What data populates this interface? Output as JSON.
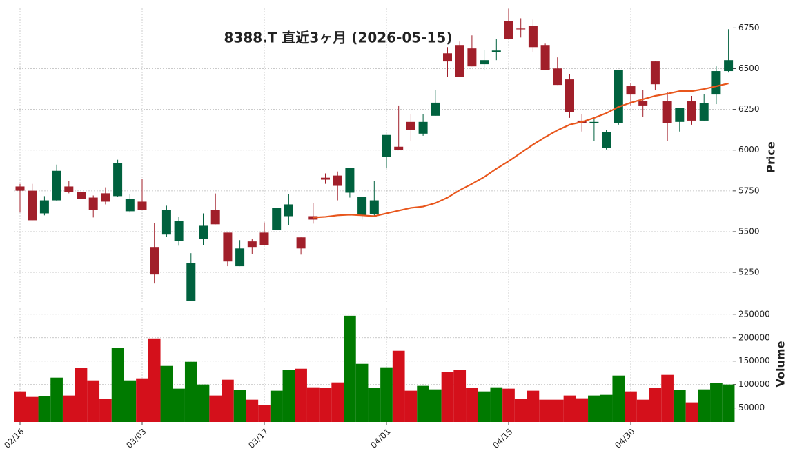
{
  "chart_data": [
    {
      "type": "candlestick",
      "title": "8388.T  直近3ヶ月 (2026-05-15)",
      "ylabel": "Price",
      "categories": [
        "02/16",
        null,
        null,
        null,
        null,
        null,
        null,
        null,
        null,
        null,
        "03/03",
        null,
        null,
        null,
        null,
        null,
        null,
        null,
        null,
        null,
        "03/17",
        null,
        null,
        null,
        null,
        null,
        null,
        null,
        null,
        null,
        "04/01",
        null,
        null,
        null,
        null,
        null,
        null,
        null,
        null,
        null,
        "04/15",
        null,
        null,
        null,
        null,
        null,
        null,
        null,
        null,
        null,
        "04/30",
        null,
        null,
        null,
        null,
        null,
        null,
        null,
        null
      ],
      "open": [
        5777,
        5751,
        5612,
        5692,
        5777,
        5743,
        5709,
        5735,
        5718,
        5625,
        5684,
        5406,
        5482,
        5444,
        5077,
        5456,
        5633,
        5494,
        5288,
        5440,
        5494,
        5511,
        5595,
        5465,
        5595,
        5831,
        5844,
        5739,
        5600,
        5608,
        5958,
        6021,
        6173,
        6101,
        6211,
        6594,
        6645,
        6624,
        6527,
        6603,
        6792,
        6746,
        6763,
        6645,
        6501,
        6434,
        6181,
        6164,
        6013,
        6164,
        6392,
        6303,
        6544,
        6299,
        6173,
        6299,
        6181,
        6341,
        6485
      ],
      "high": [
        5793,
        5793,
        5718,
        5911,
        5810,
        5760,
        5722,
        5772,
        5941,
        5730,
        5823,
        5553,
        5659,
        5591,
        5368,
        5612,
        5734,
        5494,
        5448,
        5456,
        5557,
        5646,
        5730,
        5465,
        5675,
        5857,
        5869,
        5890,
        5713,
        5810,
        6093,
        6274,
        6223,
        6223,
        6371,
        6632,
        6666,
        6704,
        6615,
        6683,
        6868,
        6809,
        6801,
        6653,
        6569,
        6468,
        6223,
        6206,
        6122,
        6493,
        6409,
        6367,
        6544,
        6354,
        6257,
        6333,
        6345,
        6514,
        6742
      ],
      "low": [
        5617,
        5570,
        5600,
        5688,
        5735,
        5574,
        5587,
        5667,
        5713,
        5617,
        5633,
        5182,
        5469,
        5414,
        5077,
        5418,
        5545,
        5288,
        5288,
        5364,
        5418,
        5511,
        5540,
        5359,
        5549,
        5793,
        5692,
        5709,
        5574,
        5591,
        5890,
        6000,
        6055,
        6088,
        6211,
        6447,
        6451,
        6514,
        6489,
        6552,
        6683,
        6691,
        6603,
        6493,
        6400,
        6198,
        6114,
        6055,
        6004,
        6156,
        6274,
        6206,
        6371,
        6055,
        6114,
        6156,
        6181,
        6282,
        6476
      ],
      "close": [
        5751,
        5570,
        5692,
        5873,
        5743,
        5701,
        5633,
        5684,
        5920,
        5701,
        5633,
        5237,
        5633,
        5566,
        5309,
        5536,
        5545,
        5317,
        5397,
        5406,
        5418,
        5646,
        5667,
        5397,
        5574,
        5819,
        5781,
        5890,
        5713,
        5692,
        6093,
        6000,
        6122,
        6173,
        6291,
        6544,
        6451,
        6514,
        6552,
        6611,
        6683,
        6742,
        6632,
        6493,
        6400,
        6232,
        6164,
        6173,
        6109,
        6493,
        6341,
        6274,
        6404,
        6164,
        6257,
        6181,
        6287,
        6485,
        6552
      ],
      "up_color": "#00613e",
      "down_color": "#a11f2a",
      "lines": [
        {
          "color": "#e8561c",
          "values": [
            null,
            null,
            null,
            null,
            null,
            null,
            null,
            null,
            null,
            null,
            null,
            null,
            null,
            null,
            null,
            null,
            null,
            null,
            null,
            null,
            null,
            null,
            null,
            null,
            5587,
            5591,
            5600,
            5604,
            5600,
            5595,
            5612,
            5629,
            5646,
            5654,
            5675,
            5709,
            5755,
            5793,
            5835,
            5886,
            5932,
            5983,
            6034,
            6080,
            6122,
            6156,
            6173,
            6198,
            6227,
            6265,
            6291,
            6312,
            6333,
            6346,
            6362,
            6362,
            6375,
            6392,
            6409
          ]
        }
      ],
      "ylim": [
        5060,
        6870
      ],
      "yticks": [
        5250,
        5500,
        5750,
        6000,
        6250,
        6500,
        6750
      ],
      "grid": true
    },
    {
      "type": "bar",
      "ylabel": "Volume",
      "values": [
        85300,
        73500,
        75000,
        114700,
        76500,
        135300,
        108800,
        69100,
        178000,
        108800,
        113200,
        198500,
        139700,
        91200,
        148500,
        100000,
        76500,
        110300,
        88200,
        67600,
        55900,
        86800,
        130900,
        133800,
        94100,
        92600,
        104400,
        247000,
        144100,
        92600,
        136800,
        172100,
        86800,
        97100,
        89700,
        126500,
        130900,
        92600,
        85300,
        94100,
        91200,
        69100,
        86800,
        67600,
        67600,
        76500,
        70600,
        76500,
        77900,
        119100,
        85300,
        67600,
        92600,
        120600,
        88200,
        61800,
        89700,
        102900,
        100000
      ],
      "up_color": "#007a00",
      "down_color": "#d4101b",
      "ylim": [
        20000,
        263000
      ],
      "yticks": [
        50000,
        100000,
        150000,
        200000,
        250000
      ],
      "grid": true
    }
  ]
}
